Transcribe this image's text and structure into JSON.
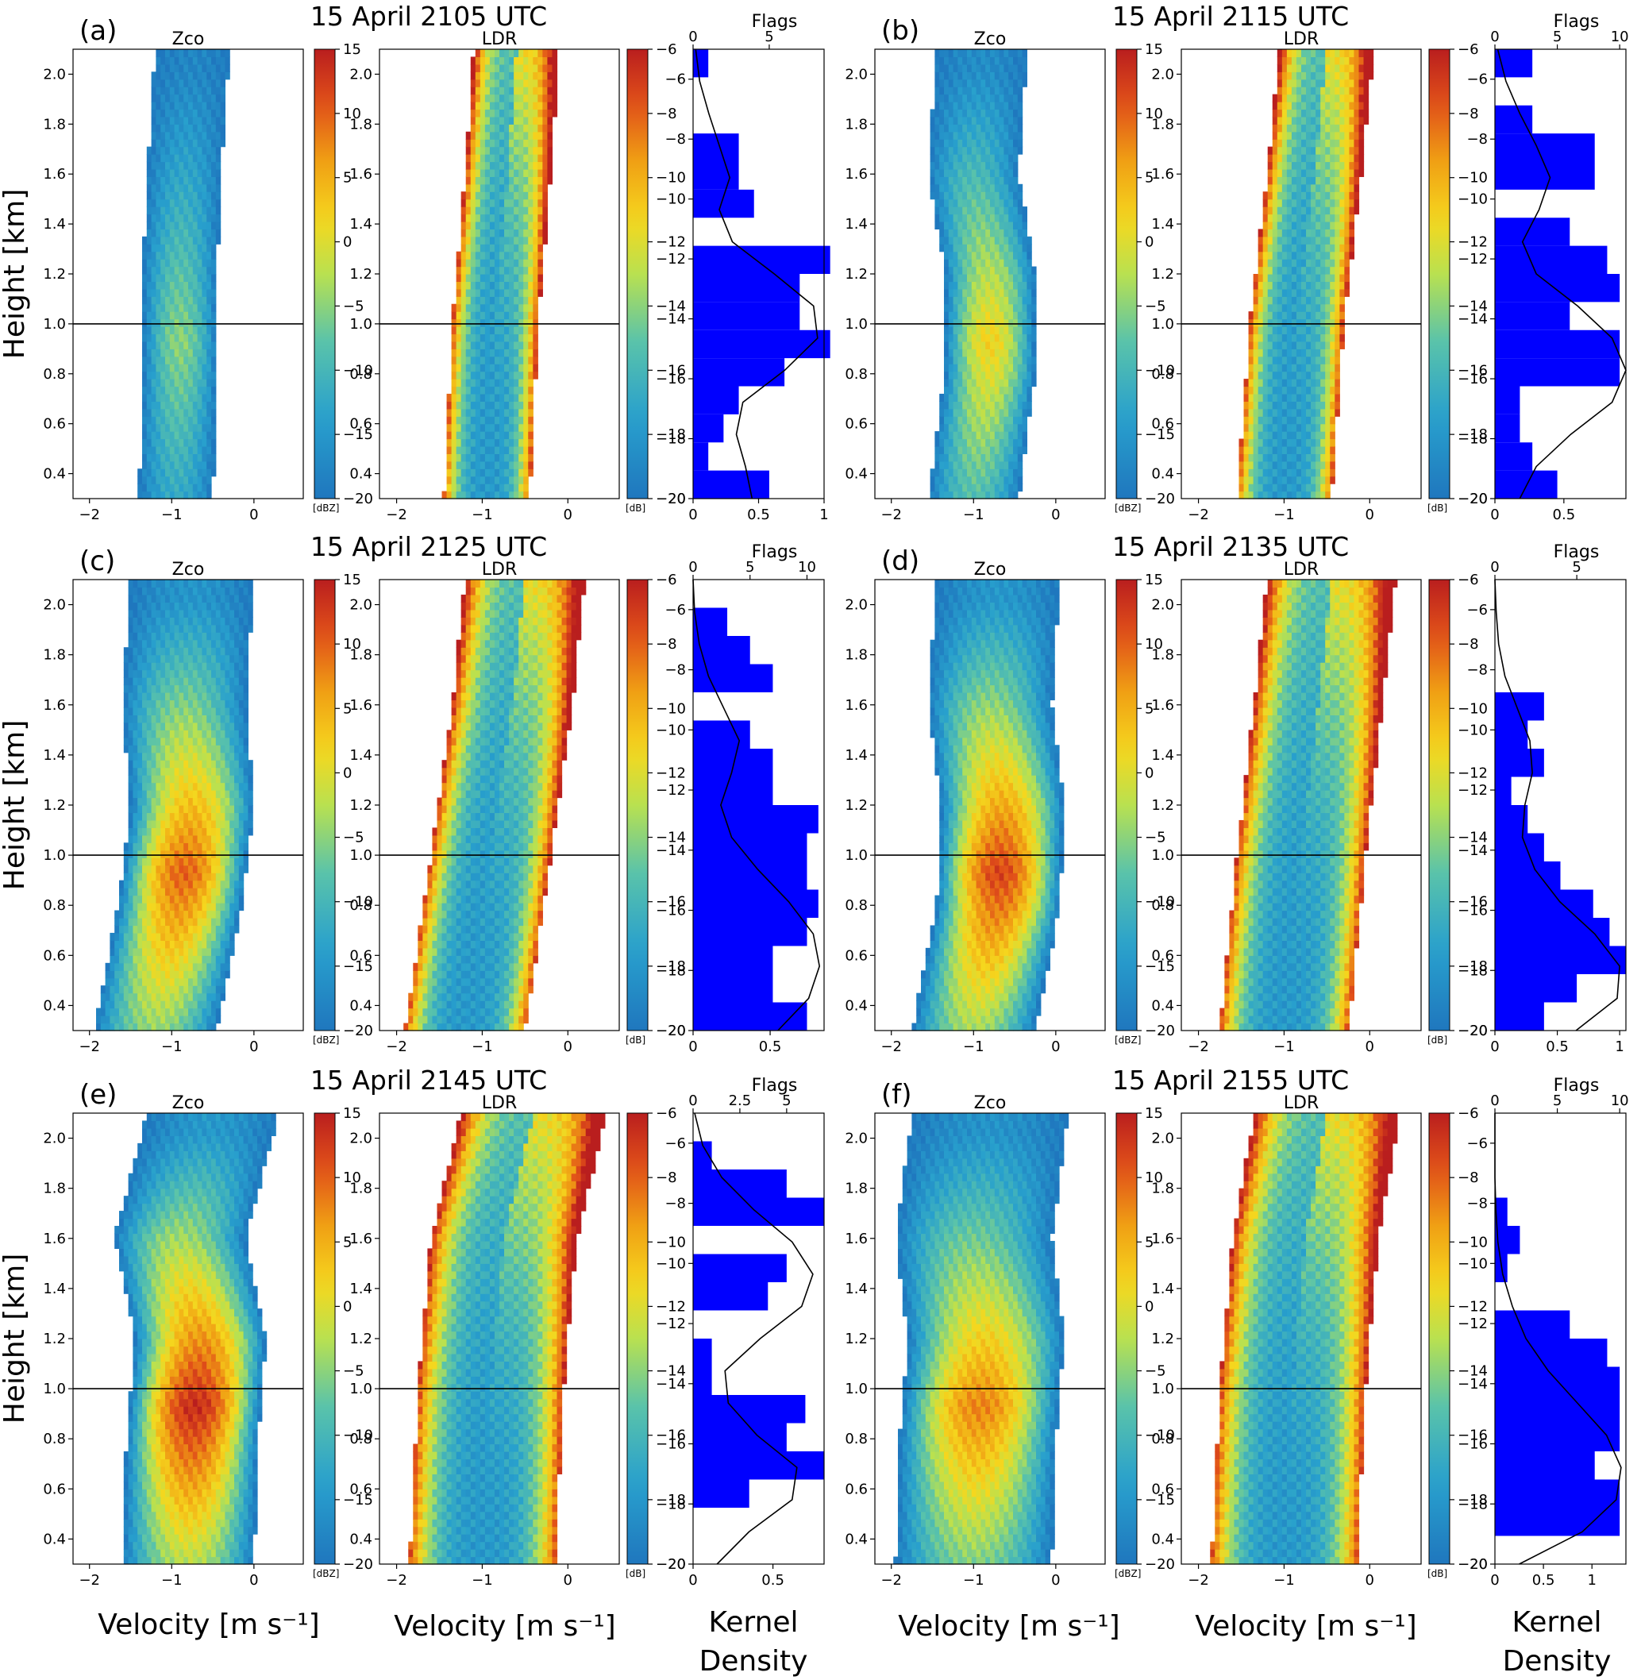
{
  "figure": {
    "ylabel": "Height [km]",
    "xlabel": "Velocity [m s⁻¹]",
    "density_label_1": "Kernel",
    "density_label_2": "Density"
  },
  "colorbars": {
    "zco": {
      "ticks": [
        15,
        10,
        5,
        0,
        -5,
        -10,
        -15,
        -20
      ],
      "unit": "[dBZ]"
    },
    "ldr": {
      "ticks": [
        -6,
        -8,
        -10,
        -12,
        -14,
        -16,
        -18,
        -20
      ],
      "unit": "[dB]"
    }
  },
  "chart_data": [
    {
      "type": "heatmap",
      "label": "(a)",
      "title": "15 April 2105 UTC",
      "zco_title": "Zco",
      "ldr_title": "LDR",
      "flags_title": "Flags",
      "height_ticks": [
        0.4,
        0.6,
        0.8,
        1.0,
        1.2,
        1.4,
        1.6,
        1.8,
        2.0
      ],
      "ylim": [
        0.3,
        2.1
      ],
      "reference_height": 1.0,
      "velocity_xlim": [
        -2.2,
        0.6
      ],
      "velocity_ticks": [
        -2,
        -1,
        0
      ],
      "zco_center": [
        {
          "h": 0.3,
          "v": -0.95
        },
        {
          "h": 0.8,
          "v": -0.9
        },
        {
          "h": 1.2,
          "v": -0.9
        },
        {
          "h": 1.6,
          "v": -0.85
        },
        {
          "h": 2.1,
          "v": -0.75
        }
      ],
      "zco_width": 0.45,
      "zco_peak": -5,
      "ldr_center": [
        {
          "h": 0.3,
          "v": -0.95
        },
        {
          "h": 1.0,
          "v": -0.85
        },
        {
          "h": 1.6,
          "v": -0.7
        },
        {
          "h": 2.1,
          "v": -0.6
        }
      ],
      "ldr_width": 0.5,
      "density_xlim": [
        0,
        1.0
      ],
      "density_ticks": [
        0.0,
        0.5,
        1.0
      ],
      "flags_xlim": [
        0,
        8.6
      ],
      "flags_ticks": [
        0,
        5
      ],
      "ldr_bins": [
        -20,
        -19,
        -18,
        -17,
        -16,
        -15,
        -14,
        -13,
        -12,
        -11,
        -10,
        -9,
        -8,
        -7,
        -6
      ],
      "flags_hist": [
        5,
        1,
        2,
        3,
        6,
        9,
        7,
        7,
        9,
        0,
        4,
        3,
        3,
        0,
        0,
        1
      ],
      "density_curve": [
        0.45,
        0.4,
        0.33,
        0.38,
        0.7,
        0.95,
        0.92,
        0.62,
        0.3,
        0.2,
        0.28,
        0.2,
        0.12,
        0.05,
        0.02
      ]
    },
    {
      "type": "heatmap",
      "label": "(b)",
      "title": "15 April 2115 UTC",
      "zco_title": "Zco",
      "ldr_title": "LDR",
      "flags_title": "Flags",
      "height_ticks": [
        0.4,
        0.6,
        0.8,
        1.0,
        1.2,
        1.4,
        1.6,
        1.8,
        2.0
      ],
      "ylim": [
        0.3,
        2.1
      ],
      "reference_height": 1.0,
      "velocity_xlim": [
        -2.2,
        0.6
      ],
      "velocity_ticks": [
        -2,
        -1,
        0
      ],
      "zco_center": [
        {
          "h": 0.3,
          "v": -1.0
        },
        {
          "h": 0.8,
          "v": -0.8
        },
        {
          "h": 1.2,
          "v": -0.8
        },
        {
          "h": 1.6,
          "v": -1.0
        },
        {
          "h": 2.1,
          "v": -0.9
        }
      ],
      "zco_width": 0.55,
      "zco_peak": 2,
      "ldr_center": [
        {
          "h": 0.3,
          "v": -1.0
        },
        {
          "h": 1.0,
          "v": -0.85
        },
        {
          "h": 1.6,
          "v": -0.65
        },
        {
          "h": 2.1,
          "v": -0.5
        }
      ],
      "ldr_width": 0.55,
      "density_xlim": [
        0,
        0.95
      ],
      "density_ticks": [
        0.0,
        0.5
      ],
      "flags_xlim": [
        0,
        10.5
      ],
      "flags_ticks": [
        0,
        5,
        10
      ],
      "ldr_bins": [
        -20,
        -19,
        -18,
        -17,
        -16,
        -15,
        -14,
        -13,
        -12,
        -11,
        -10,
        -9,
        -8,
        -7,
        -6
      ],
      "flags_hist": [
        5,
        3,
        2,
        2,
        10,
        10,
        6,
        10,
        9,
        6,
        0,
        8,
        8,
        3,
        0,
        3
      ],
      "density_curve": [
        0.18,
        0.3,
        0.55,
        0.85,
        0.95,
        0.85,
        0.6,
        0.3,
        0.2,
        0.32,
        0.4,
        0.3,
        0.18,
        0.08,
        0.02
      ]
    },
    {
      "type": "heatmap",
      "label": "(c)",
      "title": "15 April 2125 UTC",
      "zco_title": "Zco",
      "ldr_title": "LDR",
      "flags_title": "Flags",
      "height_ticks": [
        0.4,
        0.6,
        0.8,
        1.0,
        1.2,
        1.4,
        1.6,
        1.8,
        2.0
      ],
      "ylim": [
        0.3,
        2.1
      ],
      "reference_height": 1.0,
      "velocity_xlim": [
        -2.2,
        0.6
      ],
      "velocity_ticks": [
        -2,
        -1,
        0
      ],
      "zco_center": [
        {
          "h": 0.3,
          "v": -1.2
        },
        {
          "h": 0.8,
          "v": -0.9
        },
        {
          "h": 1.2,
          "v": -0.75
        },
        {
          "h": 1.6,
          "v": -0.85
        },
        {
          "h": 2.1,
          "v": -0.75
        }
      ],
      "zco_width": 0.75,
      "zco_peak": 10,
      "ldr_center": [
        {
          "h": 0.3,
          "v": -1.2
        },
        {
          "h": 1.0,
          "v": -0.9
        },
        {
          "h": 1.6,
          "v": -0.65
        },
        {
          "h": 2.1,
          "v": -0.5
        }
      ],
      "ldr_width": 0.7,
      "density_xlim": [
        0,
        0.85
      ],
      "density_ticks": [
        0.0,
        0.5
      ],
      "flags_xlim": [
        0,
        11.5
      ],
      "flags_ticks": [
        0,
        5,
        10
      ],
      "ldr_bins": [
        -20,
        -19,
        -18,
        -17,
        -16,
        -15,
        -14,
        -13,
        -12,
        -11,
        -10,
        -9,
        -8,
        -7,
        -6
      ],
      "flags_hist": [
        10,
        7,
        7,
        10,
        11,
        10,
        10,
        11,
        7,
        7,
        5,
        0,
        7,
        5,
        3,
        0
      ],
      "density_curve": [
        0.55,
        0.75,
        0.82,
        0.78,
        0.62,
        0.42,
        0.25,
        0.18,
        0.25,
        0.3,
        0.2,
        0.1,
        0.04,
        0.01,
        0.0
      ]
    },
    {
      "type": "heatmap",
      "label": "(d)",
      "title": "15 April 2135 UTC",
      "zco_title": "Zco",
      "ldr_title": "LDR",
      "flags_title": "Flags",
      "height_ticks": [
        0.4,
        0.6,
        0.8,
        1.0,
        1.2,
        1.4,
        1.6,
        1.8,
        2.0
      ],
      "ylim": [
        0.3,
        2.1
      ],
      "reference_height": 1.0,
      "velocity_xlim": [
        -2.2,
        0.6
      ],
      "velocity_ticks": [
        -2,
        -1,
        0
      ],
      "zco_center": [
        {
          "h": 0.3,
          "v": -1.0
        },
        {
          "h": 0.8,
          "v": -0.7
        },
        {
          "h": 1.2,
          "v": -0.65
        },
        {
          "h": 1.6,
          "v": -0.8
        },
        {
          "h": 2.1,
          "v": -0.7
        }
      ],
      "zco_width": 0.75,
      "zco_peak": 12,
      "ldr_center": [
        {
          "h": 0.3,
          "v": -1.0
        },
        {
          "h": 1.0,
          "v": -0.8
        },
        {
          "h": 1.6,
          "v": -0.6
        },
        {
          "h": 2.1,
          "v": -0.45
        }
      ],
      "ldr_width": 0.75,
      "density_xlim": [
        0,
        1.05
      ],
      "density_ticks": [
        0.0,
        0.5,
        1.0
      ],
      "flags_xlim": [
        0,
        8.0
      ],
      "flags_ticks": [
        0,
        5
      ],
      "ldr_bins": [
        -20,
        -19,
        -18,
        -17,
        -16,
        -15,
        -14,
        -13,
        -12,
        -11,
        -10,
        -9,
        -8,
        -7,
        -6
      ],
      "flags_hist": [
        3,
        5,
        8,
        7,
        6,
        4,
        3,
        2,
        1,
        3,
        2,
        3,
        0,
        0,
        0,
        0
      ],
      "density_curve": [
        0.65,
        0.98,
        1.0,
        0.8,
        0.52,
        0.32,
        0.22,
        0.24,
        0.3,
        0.28,
        0.18,
        0.08,
        0.03,
        0.01,
        0.0
      ]
    },
    {
      "type": "heatmap",
      "label": "(e)",
      "title": "15 April 2145 UTC",
      "zco_title": "Zco",
      "ldr_title": "LDR",
      "flags_title": "Flags",
      "height_ticks": [
        0.4,
        0.6,
        0.8,
        1.0,
        1.2,
        1.4,
        1.6,
        1.8,
        2.0
      ],
      "ylim": [
        0.3,
        2.1
      ],
      "reference_height": 1.0,
      "velocity_xlim": [
        -2.2,
        0.6
      ],
      "velocity_ticks": [
        -2,
        -1,
        0
      ],
      "zco_center": [
        {
          "h": 0.3,
          "v": -0.8
        },
        {
          "h": 0.8,
          "v": -0.75
        },
        {
          "h": 1.2,
          "v": -0.65
        },
        {
          "h": 1.6,
          "v": -0.9
        },
        {
          "h": 2.1,
          "v": -0.5
        }
      ],
      "zco_width": 0.8,
      "zco_peak": 14,
      "ldr_center": [
        {
          "h": 0.3,
          "v": -1.0
        },
        {
          "h": 1.0,
          "v": -0.9
        },
        {
          "h": 1.6,
          "v": -0.75
        },
        {
          "h": 2.1,
          "v": -0.4
        }
      ],
      "ldr_width": 0.85,
      "density_xlim": [
        0,
        0.82
      ],
      "density_ticks": [
        0.0,
        0.5
      ],
      "flags_xlim": [
        0,
        7.0
      ],
      "flags_ticks": [
        0.0,
        2.5,
        5.0
      ],
      "ldr_bins": [
        -20,
        -19,
        -18,
        -17,
        -16,
        -15,
        -14,
        -13,
        -12,
        -11,
        -10,
        -9,
        -8,
        -7,
        -6
      ],
      "flags_hist": [
        0,
        0,
        3,
        7,
        5,
        6,
        1,
        1,
        0,
        4,
        5,
        0,
        7,
        5,
        1,
        0
      ],
      "density_curve": [
        0.15,
        0.35,
        0.62,
        0.65,
        0.4,
        0.22,
        0.2,
        0.42,
        0.68,
        0.75,
        0.62,
        0.38,
        0.18,
        0.06,
        0.01
      ]
    },
    {
      "type": "heatmap",
      "label": "(f)",
      "title": "15 April 2155 UTC",
      "zco_title": "Zco",
      "ldr_title": "LDR",
      "flags_title": "Flags",
      "height_ticks": [
        0.4,
        0.6,
        0.8,
        1.0,
        1.2,
        1.4,
        1.6,
        1.8,
        2.0
      ],
      "ylim": [
        0.3,
        2.1
      ],
      "reference_height": 1.0,
      "velocity_xlim": [
        -2.2,
        0.6
      ],
      "velocity_ticks": [
        -2,
        -1,
        0
      ],
      "zco_center": [
        {
          "h": 0.3,
          "v": -1.0
        },
        {
          "h": 0.8,
          "v": -0.95
        },
        {
          "h": 1.2,
          "v": -0.85
        },
        {
          "h": 1.6,
          "v": -1.0
        },
        {
          "h": 2.1,
          "v": -0.8
        }
      ],
      "zco_width": 0.95,
      "zco_peak": 8,
      "ldr_center": [
        {
          "h": 0.3,
          "v": -1.0
        },
        {
          "h": 1.0,
          "v": -0.9
        },
        {
          "h": 1.6,
          "v": -0.75
        },
        {
          "h": 2.1,
          "v": -0.5
        }
      ],
      "ldr_width": 0.85,
      "density_xlim": [
        0,
        1.35
      ],
      "density_ticks": [
        0.0,
        0.5,
        1.0
      ],
      "flags_xlim": [
        0,
        10.5
      ],
      "flags_ticks": [
        0,
        5,
        10
      ],
      "ldr_bins": [
        -20,
        -19,
        -18,
        -17,
        -16,
        -15,
        -14,
        -13,
        -12,
        -11,
        -10,
        -9,
        -8,
        -7,
        -6
      ],
      "flags_hist": [
        0,
        10,
        10,
        8,
        10,
        10,
        10,
        9,
        6,
        0,
        1,
        2,
        1,
        0,
        0,
        0
      ],
      "density_curve": [
        0.25,
        0.9,
        1.25,
        1.3,
        1.15,
        0.85,
        0.55,
        0.32,
        0.18,
        0.08,
        0.03,
        0.01,
        0.0,
        0.0,
        0.0
      ]
    }
  ]
}
